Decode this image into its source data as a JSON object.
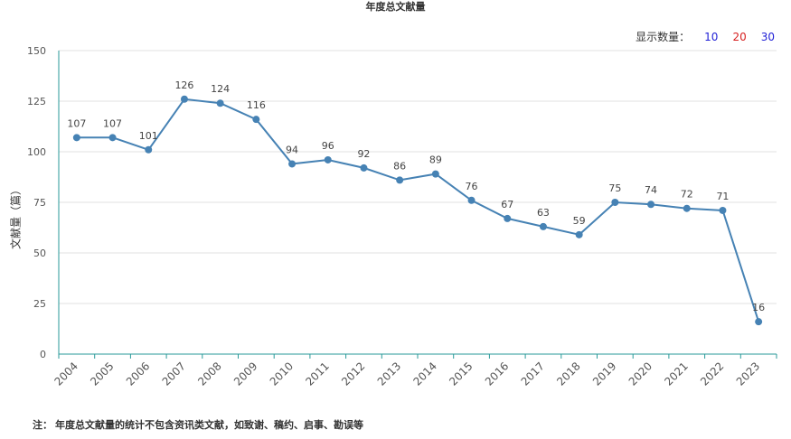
{
  "chart_data": {
    "type": "line",
    "title": "年度总文献量",
    "ylabel": "文献量（篇）",
    "xlabel": "",
    "categories": [
      "2004",
      "2005",
      "2006",
      "2007",
      "2008",
      "2009",
      "2010",
      "2011",
      "2012",
      "2013",
      "2014",
      "2015",
      "2016",
      "2017",
      "2018",
      "2019",
      "2020",
      "2021",
      "2022",
      "2023"
    ],
    "values": [
      107,
      107,
      101,
      126,
      124,
      116,
      94,
      96,
      92,
      86,
      89,
      76,
      67,
      63,
      59,
      75,
      74,
      72,
      71,
      16
    ],
    "ylim": [
      0,
      150
    ],
    "yticks": [
      0,
      25,
      50,
      75,
      100,
      125,
      150
    ],
    "grid": true,
    "data_labels": true,
    "line_color": "#4682b4"
  },
  "controls": {
    "display_count_label": "显示数量：",
    "options": [
      "10",
      "20",
      "30"
    ]
  },
  "footnote": {
    "label": "注：",
    "text": "年度总文献量的统计不包含资讯类文献，如致谢、稿约、启事、勘误等"
  }
}
